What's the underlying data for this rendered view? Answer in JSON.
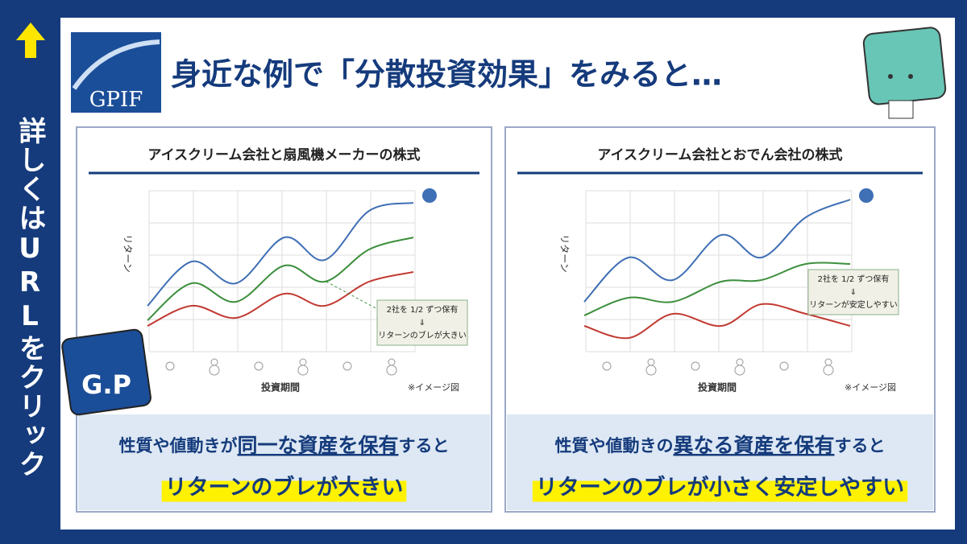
{
  "sidebar": {
    "text": "詳しくはURLをクリック"
  },
  "header": {
    "logo": "GPIF",
    "title": "身近な例で「分散投資効果」をみると…"
  },
  "mascot": "G.P",
  "panels": [
    {
      "title": "アイスクリーム会社と扇風機メーカーの株式",
      "y_label": "リターン",
      "x_label": "投資期間",
      "note": "※イメージ図",
      "callout": [
        "2社を 1/2 ずつ保有",
        "⇓",
        "リターンのブレが大きい"
      ],
      "caption": [
        "性質や値動きが",
        "同一な資産を保有",
        "すると"
      ],
      "highlight": "リターンのブレが大きい"
    },
    {
      "title": "アイスクリーム会社とおでん会社の株式",
      "y_label": "リターン",
      "x_label": "投資期間",
      "note": "※イメージ図",
      "callout": [
        "2社を 1/2 ずつ保有",
        "⇓",
        "リターンが安定しやすい"
      ],
      "caption": [
        "性質や値動きの",
        "異なる資産を保有",
        "すると"
      ],
      "highlight": "リターンのブレが小さく安定しやすい"
    }
  ]
}
